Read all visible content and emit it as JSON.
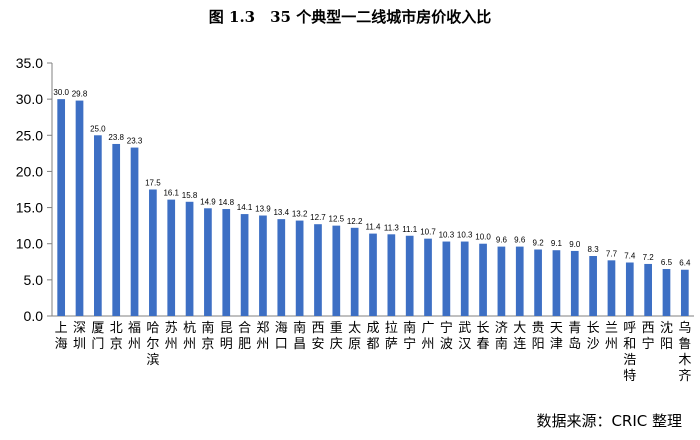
{
  "title": "图 1.3　35 个典型一二线城市房价收入比",
  "source": "数据来源：CRIC 整理",
  "chart_data": {
    "type": "bar",
    "title": "图 1.3　35 个典型一二线城市房价收入比",
    "ylim": [
      0,
      35
    ],
    "yticks": [
      "0.0",
      "5.0",
      "10.0",
      "15.0",
      "20.0",
      "25.0",
      "30.0",
      "35.0"
    ],
    "grid": false,
    "bar_color": "#3d6fc4",
    "categories": [
      "上海",
      "深圳",
      "厦门",
      "北京",
      "福州",
      "哈尔滨",
      "苏州",
      "杭州",
      "南京",
      "昆明",
      "合肥",
      "郑州",
      "海口",
      "南昌",
      "西安",
      "重庆",
      "太原",
      "成都",
      "拉萨",
      "南宁",
      "广州",
      "宁波",
      "武汉",
      "长春",
      "济南",
      "大连",
      "贵阳",
      "天津",
      "青岛",
      "长沙",
      "兰州",
      "呼和浩特",
      "西宁",
      "沈阳",
      "乌鲁木齐"
    ],
    "values": [
      30.0,
      29.8,
      25.0,
      23.8,
      23.3,
      17.5,
      16.1,
      15.8,
      14.9,
      14.8,
      14.1,
      13.9,
      13.4,
      13.2,
      12.7,
      12.5,
      12.2,
      11.4,
      11.3,
      11.1,
      10.7,
      10.3,
      10.3,
      10.0,
      9.6,
      9.6,
      9.2,
      9.1,
      9.0,
      8.3,
      7.7,
      7.4,
      7.2,
      6.5,
      6.4
    ],
    "data_labels": [
      "30.0",
      "29.8",
      "25.0",
      "23.8",
      "23.3",
      "17.5",
      "16.1",
      "15.8",
      "14.9",
      "14.8",
      "14.1",
      "13.9",
      "13.4",
      "13.2",
      "12.7",
      "12.5",
      "12.2",
      "11.4",
      "11.3",
      "11.1",
      "10.7",
      "10.3",
      "10.3",
      "10.0",
      "9.6",
      "9.6",
      "9.2",
      "9.1",
      "9.0",
      "8.3",
      "7.7",
      "7.4",
      "7.2",
      "6.5",
      "6.4"
    ]
  }
}
